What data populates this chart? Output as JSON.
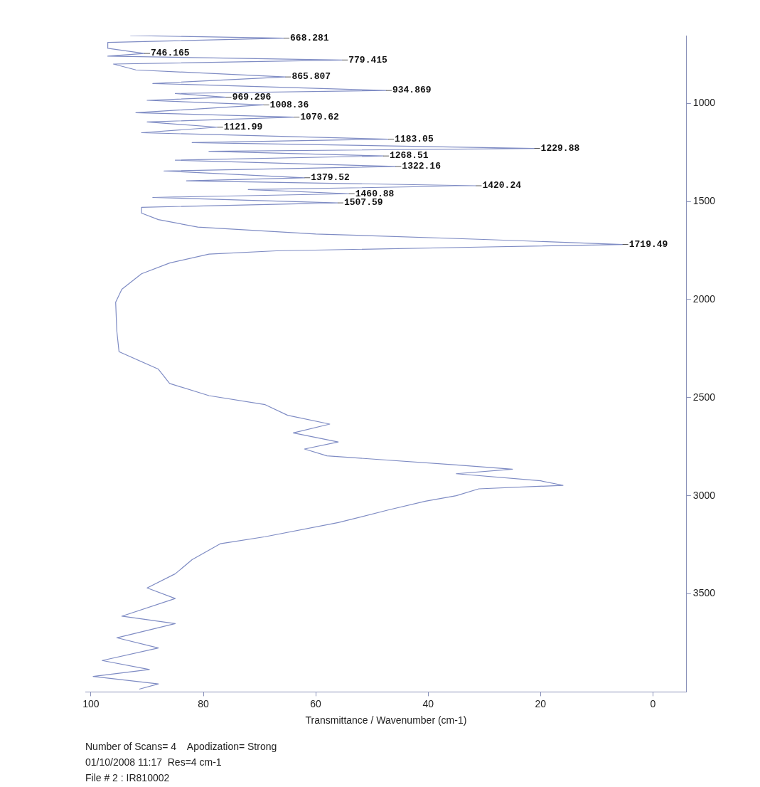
{
  "chart_data": {
    "type": "line",
    "orientation": "horizontal",
    "xlabel": "Transmittance / Wavenumber (cm-1)",
    "xlim": [
      101,
      -6
    ],
    "xticks": [
      100,
      80,
      60,
      40,
      20,
      0
    ],
    "ylim": [
      4000,
      655
    ],
    "yticks": [
      1000,
      1500,
      2000,
      2500,
      3000,
      3500
    ],
    "grid": false,
    "legend": false,
    "marker": "none",
    "line_style": "solid",
    "series": [
      {
        "color": "#7f8cc4",
        "x": [
          655,
          668.281,
          690,
          720,
          746.165,
          760,
          779.415,
          800,
          830,
          865.807,
          899,
          934.869,
          950,
          969.296,
          985,
          1008.36,
          1048,
          1070.62,
          1095,
          1121.99,
          1150,
          1183.05,
          1200,
          1229.88,
          1245,
          1268.51,
          1290,
          1322.16,
          1345,
          1379.52,
          1395,
          1420.24,
          1440,
          1460.88,
          1480,
          1507.59,
          1530,
          1560,
          1593,
          1631,
          1666,
          1693,
          1719.49,
          1733,
          1752,
          1769,
          1814,
          1869,
          1948,
          2014,
          2159,
          2266,
          2355,
          2428,
          2490,
          2536,
          2590,
          2635,
          2680,
          2726,
          2762,
          2797,
          2843,
          2865,
          2888,
          2924,
          2947,
          2965,
          3000,
          3028,
          3072,
          3137,
          3209,
          3245,
          3326,
          3398,
          3470,
          3524,
          3614,
          3652,
          3724,
          3776,
          3840,
          3886,
          3921,
          3959,
          3986
        ],
        "values": [
          93,
          65.7,
          97,
          97,
          90.5,
          97,
          55.3,
          96,
          92,
          65.4,
          89,
          47.5,
          85,
          76,
          90,
          69.3,
          92,
          63.9,
          90,
          77.5,
          91,
          47.1,
          82,
          21.1,
          79,
          48,
          85,
          45.8,
          87,
          62,
          83,
          31.5,
          72,
          54.1,
          89,
          56.1,
          91,
          91,
          88,
          81,
          60,
          31,
          5.4,
          31,
          67,
          79,
          86,
          91,
          94.5,
          95.6,
          95.4,
          95,
          88,
          86,
          79,
          69,
          65,
          57.5,
          64,
          56,
          62,
          58,
          35,
          25,
          35,
          20,
          16,
          31,
          35,
          40.5,
          47,
          56,
          69,
          77,
          82,
          85,
          90,
          85,
          94.5,
          85,
          95.4,
          88,
          98,
          89.6,
          99.6,
          88,
          91.4
        ]
      }
    ],
    "annotations": [
      {
        "text": "668.281",
        "x": 65.7,
        "y": 668.281
      },
      {
        "text": "746.165",
        "x": 90.5,
        "y": 746.165
      },
      {
        "text": "779.415",
        "x": 55.3,
        "y": 779.415
      },
      {
        "text": "865.807",
        "x": 65.4,
        "y": 865.807
      },
      {
        "text": "934.869",
        "x": 47.5,
        "y": 934.869
      },
      {
        "text": "969.296",
        "x": 76,
        "y": 969.296
      },
      {
        "text": "1008.36",
        "x": 69.3,
        "y": 1008.36
      },
      {
        "text": "1070.62",
        "x": 63.9,
        "y": 1070.62
      },
      {
        "text": "1121.99",
        "x": 77.5,
        "y": 1121.99
      },
      {
        "text": "1183.05",
        "x": 47.1,
        "y": 1183.05
      },
      {
        "text": "1229.88",
        "x": 21.1,
        "y": 1229.88
      },
      {
        "text": "1268.51",
        "x": 48,
        "y": 1268.51
      },
      {
        "text": "1322.16",
        "x": 45.8,
        "y": 1322.16
      },
      {
        "text": "1379.52",
        "x": 62,
        "y": 1379.52
      },
      {
        "text": "1420.24",
        "x": 31.5,
        "y": 1420.24
      },
      {
        "text": "1460.88",
        "x": 54.1,
        "y": 1460.88
      },
      {
        "text": "1507.59",
        "x": 56.1,
        "y": 1507.59
      },
      {
        "text": "1719.49",
        "x": 5.4,
        "y": 1719.49
      },
      "Number of Scans= 4    Apodization= Strong",
      "01/10/2008 11:17  Res=4 cm-1",
      "File # 2 : IR810002"
    ]
  }
}
